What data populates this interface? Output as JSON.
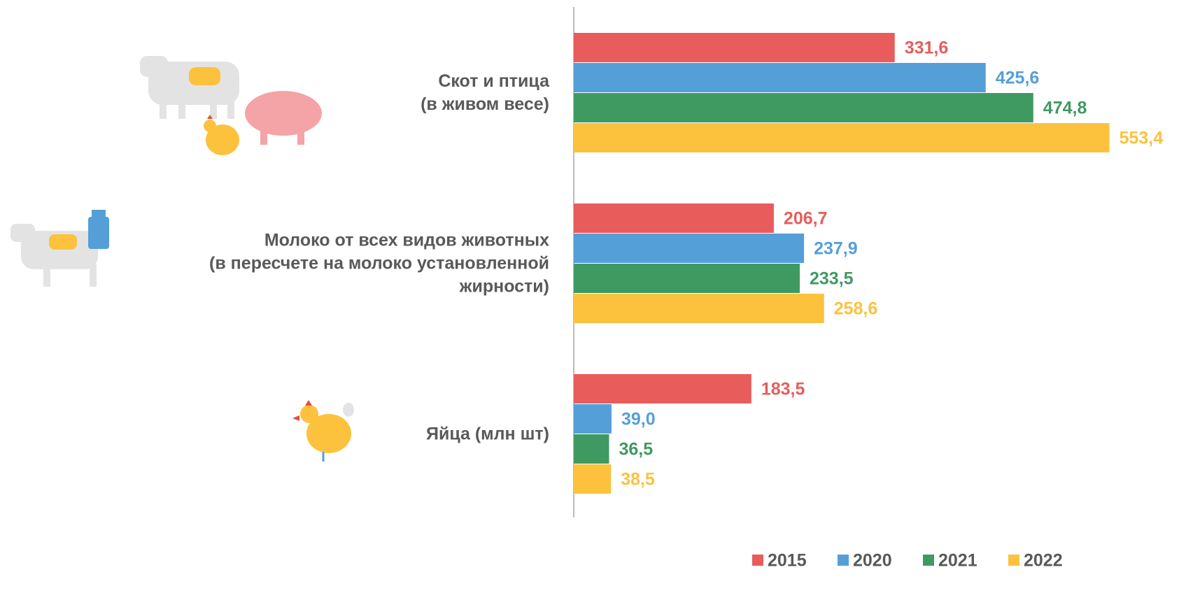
{
  "chart_data": {
    "type": "hbar",
    "categories": [
      "Скот и птица\n(в живом весе)",
      "Молоко от всех видов животных\n(в пересчете на молоко установленной\nжирности)",
      "Яйца (млн шт)"
    ],
    "series": [
      {
        "name": "2015",
        "color": "#e85c5c",
        "values": [
          331.6,
          206.7,
          183.5
        ],
        "value_labels": [
          "331,6",
          "206,7",
          "183,5"
        ]
      },
      {
        "name": "2020",
        "color": "#559fd8",
        "values": [
          425.6,
          237.9,
          39.0
        ],
        "value_labels": [
          "425,6",
          "237,9",
          "39,0"
        ]
      },
      {
        "name": "2021",
        "color": "#3f9a62",
        "values": [
          474.8,
          233.5,
          36.5
        ],
        "value_labels": [
          "474,8",
          "233,5",
          "36,5"
        ]
      },
      {
        "name": "2022",
        "color": "#fcc23d",
        "values": [
          553.4,
          258.6,
          38.5
        ],
        "value_labels": [
          "553,4",
          "258,6",
          "38,5"
        ]
      }
    ],
    "xlim": [
      0,
      600
    ],
    "legend": "bottom-right"
  }
}
